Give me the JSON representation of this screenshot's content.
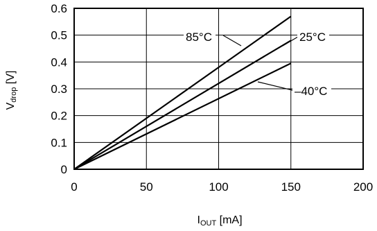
{
  "chart_data": {
    "type": "line",
    "xlabel_main": "I",
    "xlabel_sub": "OUT",
    "xlabel_unit": " [mA]",
    "ylabel_main": "V",
    "ylabel_sub": "drop",
    "ylabel_unit": " [V]",
    "xlim": [
      0,
      200
    ],
    "ylim": [
      0,
      0.6
    ],
    "x_ticks": [
      0,
      50,
      100,
      150,
      200
    ],
    "x_tick_labels": [
      "0",
      "50",
      "100",
      "150",
      "200"
    ],
    "y_ticks": [
      0,
      0.1,
      0.2,
      0.3,
      0.4,
      0.5,
      0.6
    ],
    "y_tick_labels": [
      "0",
      "0.1",
      "0.2",
      "0.3",
      "0.4",
      "0.5",
      "0.6"
    ],
    "grid": true,
    "series": [
      {
        "name": "85°C",
        "x": [
          0,
          150
        ],
        "y": [
          0,
          0.57
        ]
      },
      {
        "name": "25°C",
        "x": [
          0,
          150
        ],
        "y": [
          0,
          0.48
        ]
      },
      {
        "name": "–40°C",
        "x": [
          0,
          150
        ],
        "y": [
          0,
          0.395
        ]
      }
    ]
  }
}
